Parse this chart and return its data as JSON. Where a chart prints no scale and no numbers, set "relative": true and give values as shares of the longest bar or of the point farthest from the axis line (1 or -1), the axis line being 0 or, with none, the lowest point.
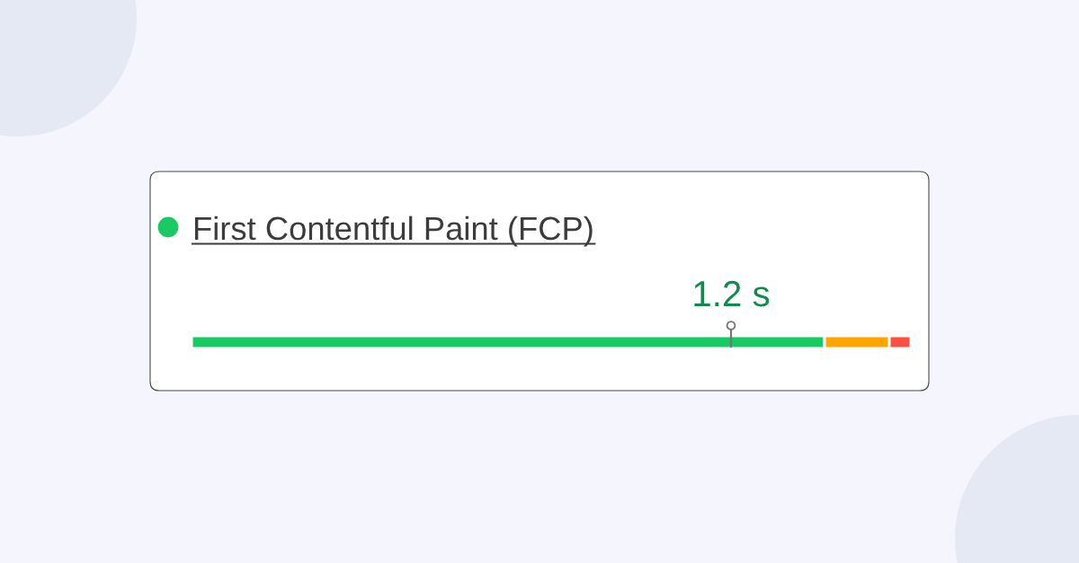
{
  "chart_data": {
    "type": "bar",
    "orientation": "horizontal",
    "stacked": true,
    "relative": true,
    "title": "First Contentful Paint (FCP)",
    "categories": [
      null
    ],
    "series": [
      {
        "color": "#18c964",
        "values": [
          0.88
        ]
      },
      {
        "color": "#ffa400",
        "values": [
          0.09
        ]
      },
      {
        "color": "#ff4e42",
        "values": [
          0.03
        ]
      }
    ],
    "ref_lines": [
      {
        "axis": "x",
        "value": 0.75,
        "label": "1.2 s",
        "color": "#757575"
      }
    ]
  }
}
